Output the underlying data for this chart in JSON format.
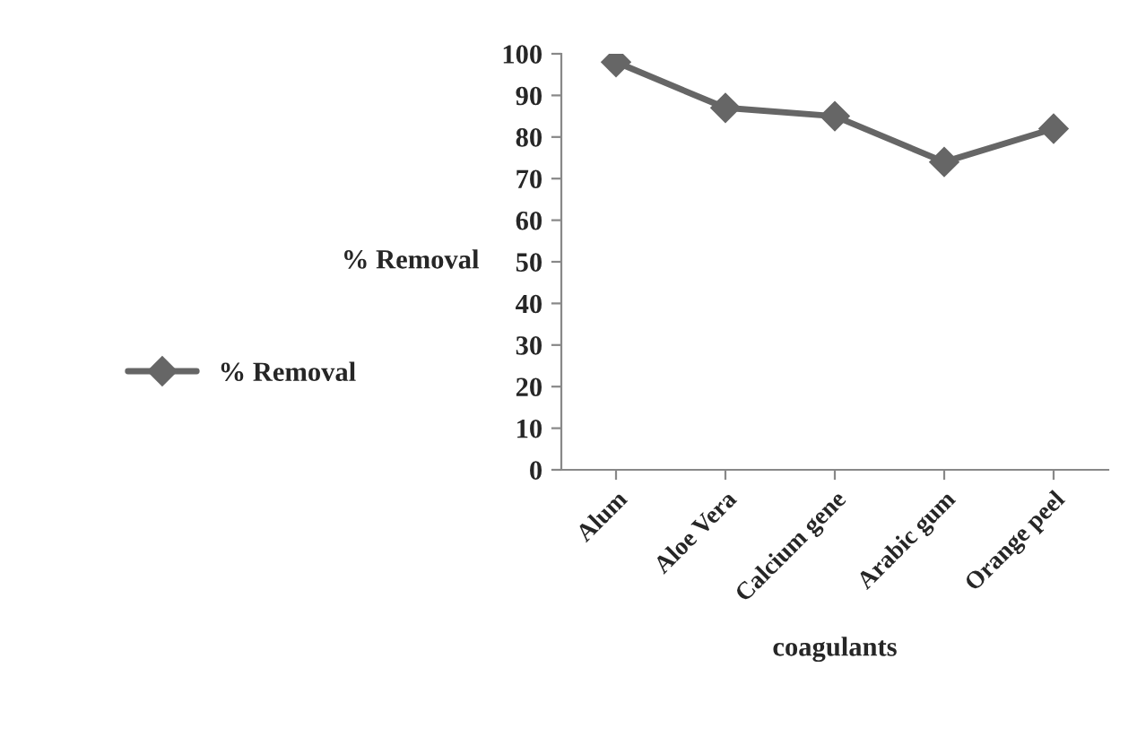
{
  "chart_data": {
    "type": "line",
    "xlabel": "coagulants",
    "ylabel": "% Removal",
    "categories": [
      "Alum",
      "Aloe Vera",
      "Calcium gene",
      "Arabic gum",
      "Orange peel"
    ],
    "series": [
      {
        "name": "% Removal",
        "color": "#666666",
        "values": [
          98,
          87,
          85,
          74,
          82
        ]
      }
    ],
    "ylim": [
      0,
      100
    ],
    "yticks": [
      0,
      10,
      20,
      30,
      40,
      50,
      60,
      70,
      80,
      90,
      100
    ],
    "marker": "diamond",
    "line_style": "solid",
    "legend": "left",
    "grid": false
  }
}
